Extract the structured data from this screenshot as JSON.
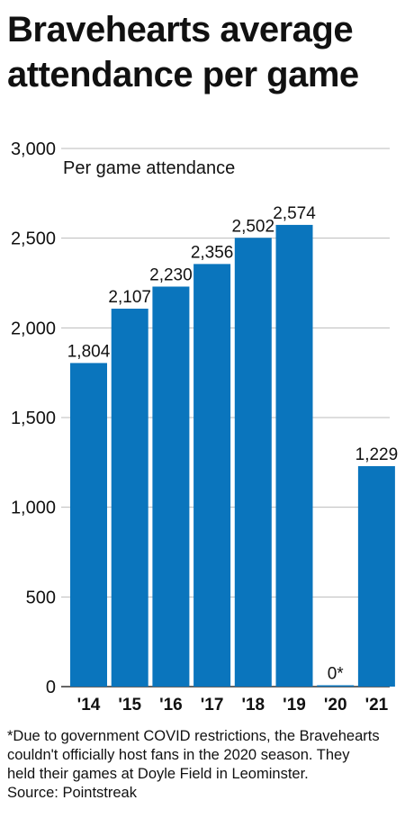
{
  "title_lines": [
    "Bravehearts average",
    "attendance per game"
  ],
  "chart_data": {
    "type": "bar",
    "ylabel": "Per game attendance",
    "categories": [
      "'14",
      "'15",
      "'16",
      "'17",
      "'18",
      "'19",
      "'20",
      "'21"
    ],
    "values": [
      1804,
      2107,
      2230,
      2356,
      2502,
      2574,
      0,
      1229
    ],
    "value_labels": [
      "1,804",
      "2,107",
      "2,230",
      "2,356",
      "2,502",
      "2,574",
      "0*",
      "1,229"
    ],
    "ylim": [
      0,
      3000
    ],
    "yticks": [
      0,
      500,
      1000,
      1500,
      2000,
      2500,
      3000
    ],
    "ytick_labels": [
      "0",
      "500",
      "1,000",
      "1,500",
      "2,000",
      "2,500",
      "3,000"
    ],
    "grid": true,
    "bar_color": "#0a75bd"
  },
  "footnote_lines": [
    "*Due to government COVID restrictions, the Bravehearts",
    "couldn't officially host fans in the 2020 season. They",
    "held their games at Doyle Field in Leominster."
  ],
  "source": "Source: Pointstreak"
}
